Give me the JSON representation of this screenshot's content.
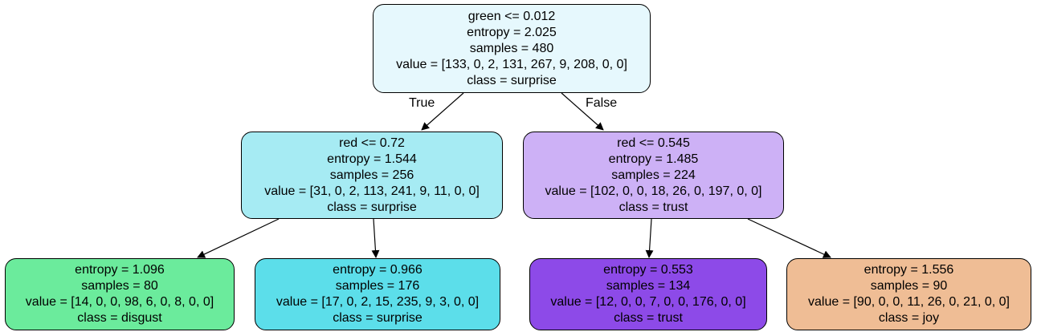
{
  "tree": {
    "nodes": [
      {
        "id": "root",
        "color": "#e6f8fd",
        "lines": [
          "green <= 0.012",
          "entropy = 2.025",
          "samples = 480",
          "value = [133, 0, 2, 131, 267, 9, 208, 0, 0]",
          "class = surprise"
        ]
      },
      {
        "id": "left",
        "color": "#a6ebf3",
        "lines": [
          "red <= 0.72",
          "entropy = 1.544",
          "samples = 256",
          "value = [31, 0, 2, 113, 241, 9, 11, 0, 0]",
          "class = surprise"
        ]
      },
      {
        "id": "right",
        "color": "#cdb1f6",
        "lines": [
          "red <= 0.545",
          "entropy = 1.485",
          "samples = 224",
          "value = [102, 0, 0, 18, 26, 0, 197, 0, 0]",
          "class = trust"
        ]
      },
      {
        "id": "left-left",
        "color": "#6beb9c",
        "lines": [
          "entropy = 1.096",
          "samples = 80",
          "value = [14, 0, 0, 98, 6, 0, 8, 0, 0]",
          "class = disgust"
        ]
      },
      {
        "id": "left-right",
        "color": "#5cdeea",
        "lines": [
          "entropy = 0.966",
          "samples = 176",
          "value = [17, 0, 2, 15, 235, 9, 3, 0, 0]",
          "class = surprise"
        ]
      },
      {
        "id": "right-left",
        "color": "#8d4ae8",
        "lines": [
          "entropy = 0.553",
          "samples = 134",
          "value = [12, 0, 0, 7, 0, 0, 176, 0, 0]",
          "class = trust"
        ]
      },
      {
        "id": "right-right",
        "color": "#efbd95",
        "lines": [
          "entropy = 1.556",
          "samples = 90",
          "value = [90, 0, 0, 11, 26, 0, 21, 0, 0]",
          "class = joy"
        ]
      }
    ],
    "edges": [
      {
        "from": "root",
        "to": "left"
      },
      {
        "from": "root",
        "to": "right"
      },
      {
        "from": "left",
        "to": "left-left"
      },
      {
        "from": "left",
        "to": "left-right"
      },
      {
        "from": "right",
        "to": "right-left"
      },
      {
        "from": "right",
        "to": "right-right"
      }
    ],
    "edge_labels": {
      "true": "True",
      "false": "False"
    }
  }
}
